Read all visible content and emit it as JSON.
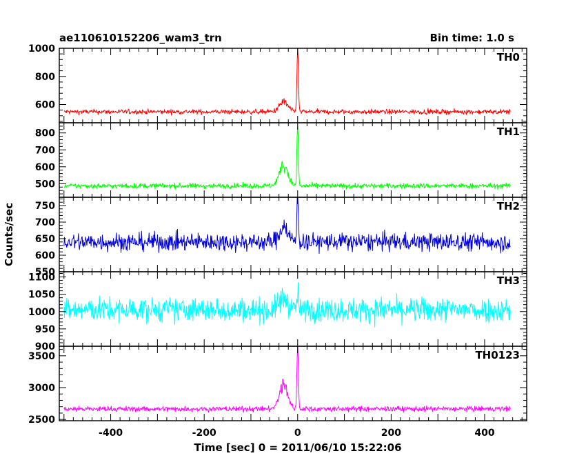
{
  "chart_data": {
    "type": "line",
    "title": "ae110610152206_wam3_trn",
    "subtitle": "Bin time: 1.0 s",
    "xlabel": "Time [sec] 0 = 2011/06/10 15:22:06",
    "ylabel": "Counts/sec",
    "xlim": [
      -510,
      490
    ],
    "xticks": [
      -400,
      -200,
      0,
      200,
      400
    ],
    "x_range": [
      -500,
      455
    ],
    "grid": false,
    "panels": [
      {
        "name": "TH0",
        "color": "#ff0000",
        "ylim": [
          470,
          1000
        ],
        "yticks": [
          600,
          800,
          1000
        ],
        "baseline": 548,
        "noise": 22,
        "peak": 1000,
        "peak_x": 0,
        "precursor_peak": 640,
        "precursor_x": -30
      },
      {
        "name": "TH1",
        "color": "#00ff00",
        "ylim": [
          420,
          860
        ],
        "yticks": [
          500,
          600,
          700,
          800
        ],
        "baseline": 487,
        "noise": 20,
        "peak": 845,
        "peak_x": 0,
        "precursor_peak": 650,
        "precursor_x": -30
      },
      {
        "name": "TH2",
        "color": "#0000dd",
        "ylim": [
          550,
          775
        ],
        "yticks": [
          550,
          600,
          650,
          700,
          750
        ],
        "baseline": 640,
        "noise": 35,
        "peak": 780,
        "peak_x": 0,
        "precursor_peak": 700,
        "precursor_x": -30
      },
      {
        "name": "TH3",
        "color": "#00ffff",
        "ylim": [
          900,
          1115
        ],
        "yticks": [
          900,
          950,
          1000,
          1050,
          1100
        ],
        "baseline": 1005,
        "noise": 45,
        "peak": 1060,
        "peak_x": 0,
        "precursor_peak": 1050,
        "precursor_x": -30
      },
      {
        "name": "TH0123",
        "color": "#ff00ff",
        "ylim": [
          2480,
          3650
        ],
        "yticks": [
          2500,
          3000,
          3500
        ],
        "baseline": 2665,
        "noise": 55,
        "peak": 3650,
        "peak_x": 0,
        "precursor_peak": 3150,
        "precursor_x": -30
      }
    ]
  }
}
